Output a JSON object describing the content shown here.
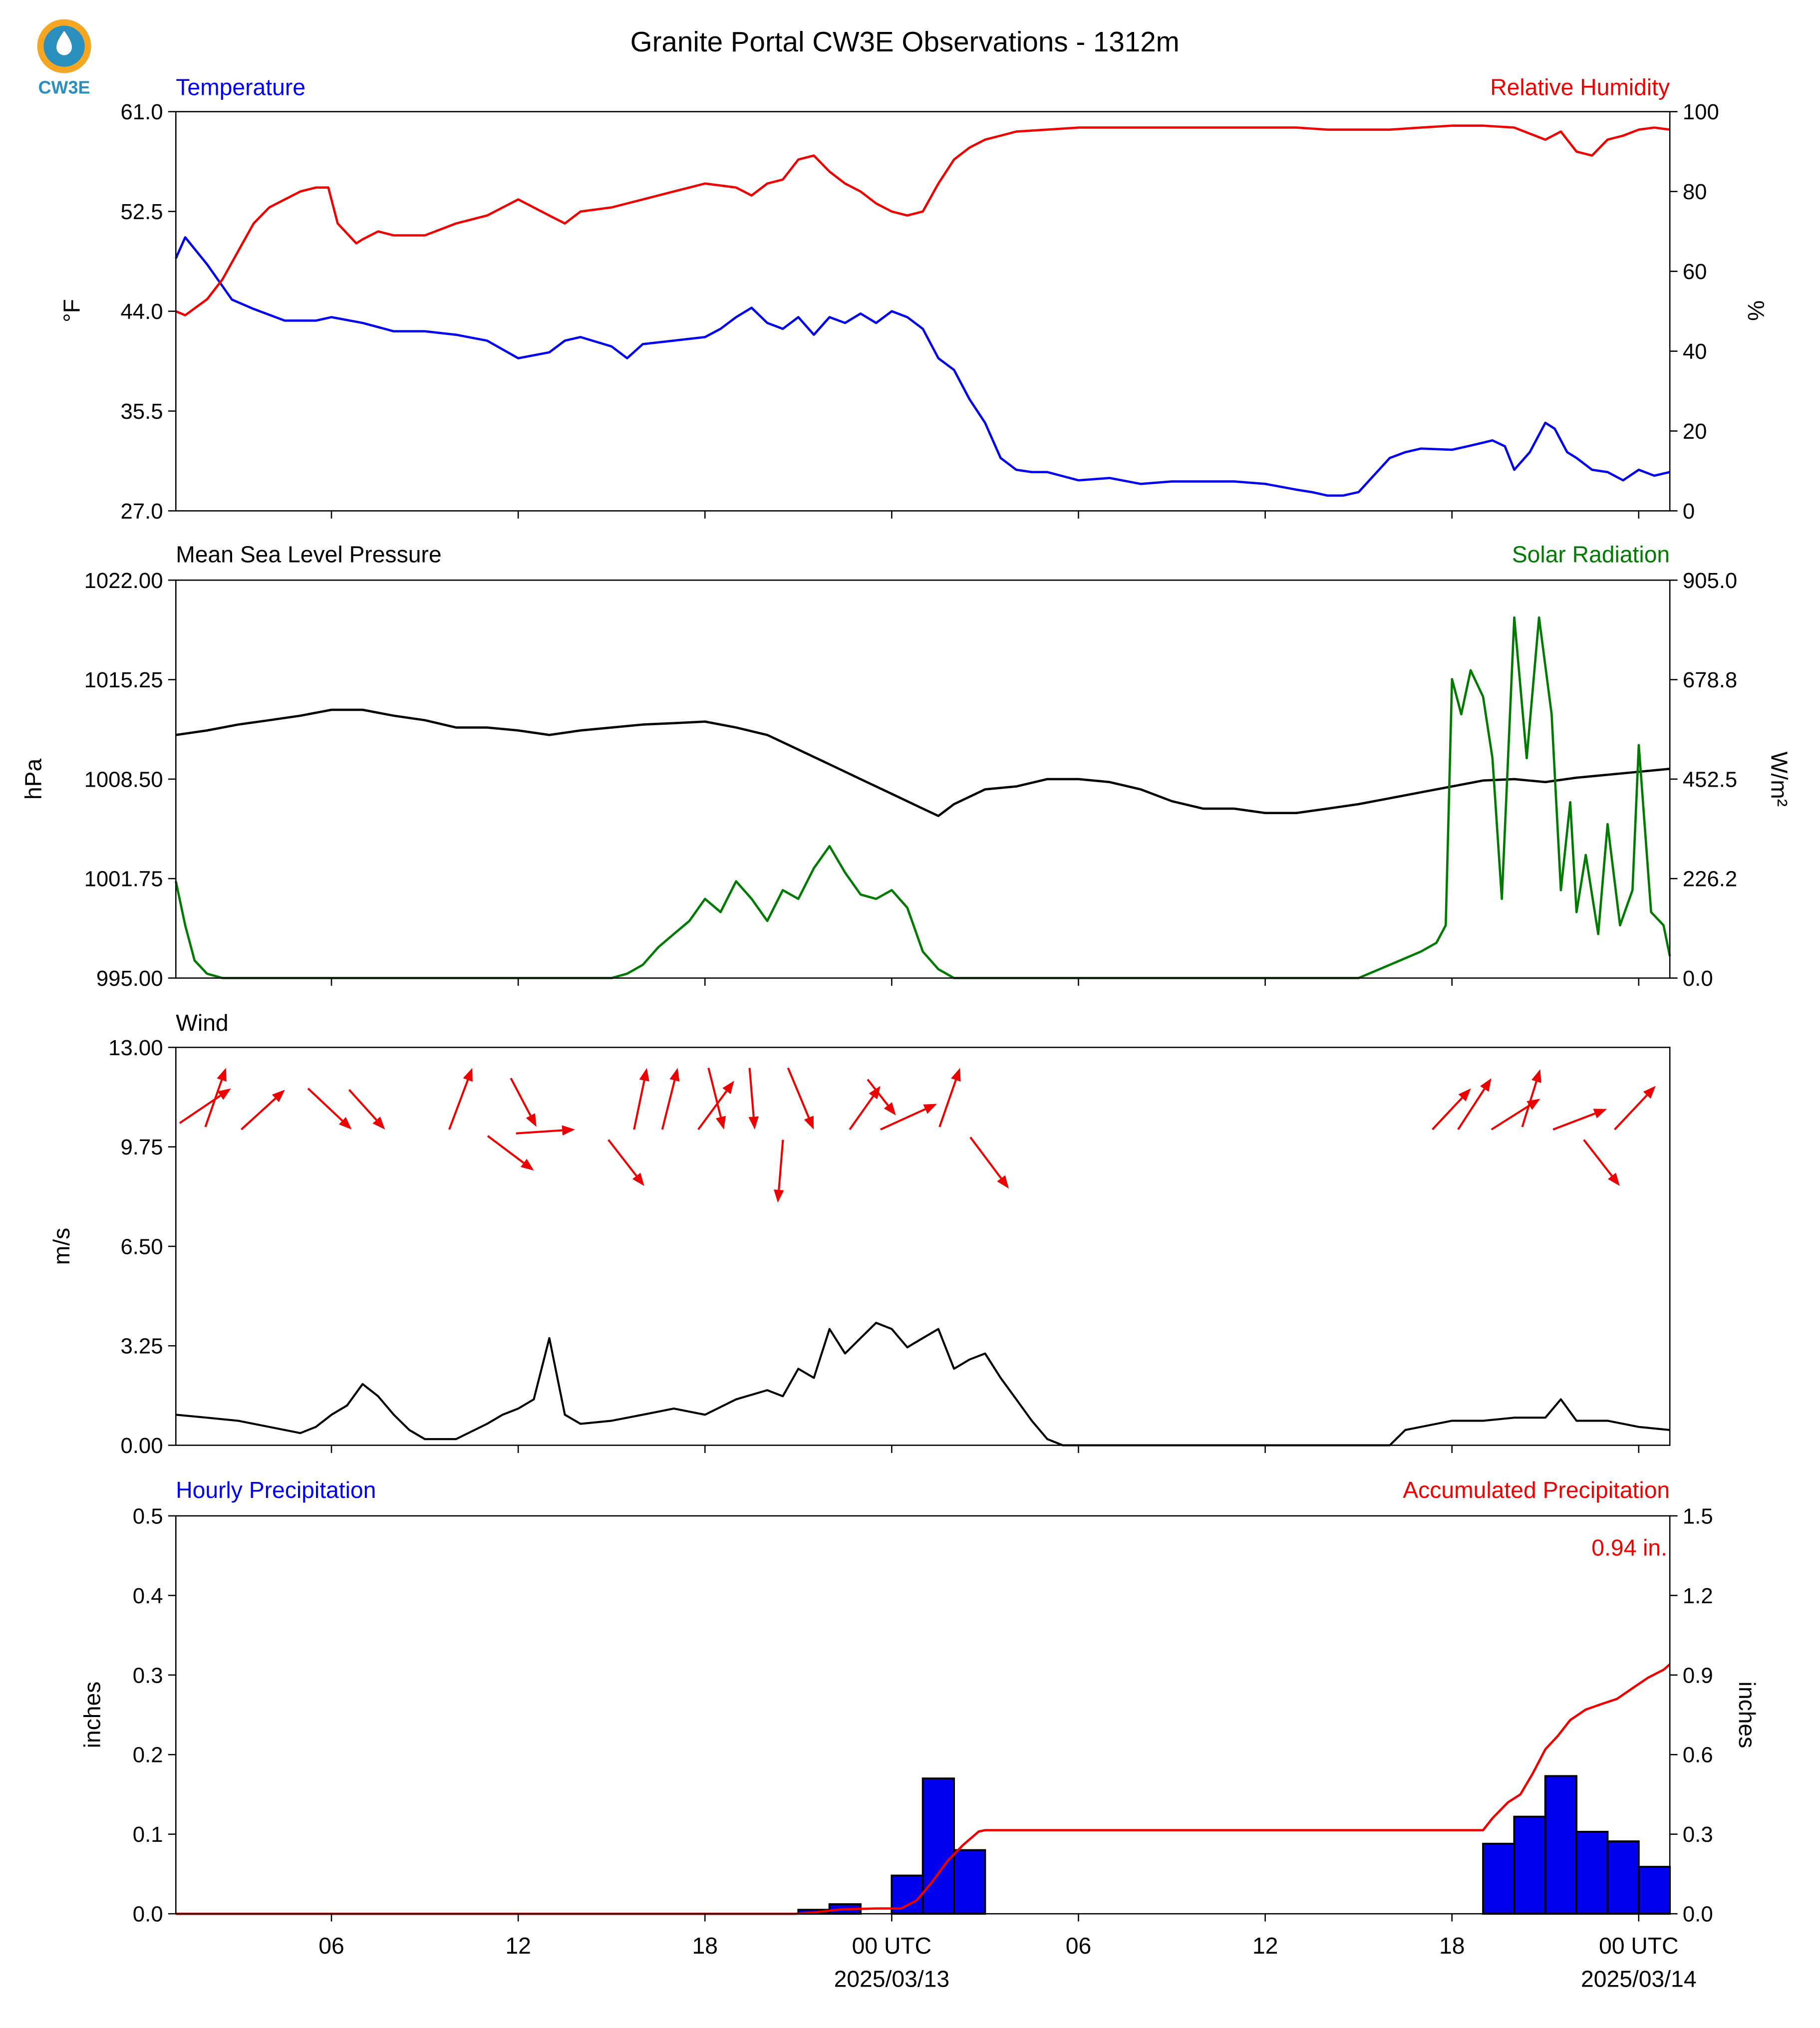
{
  "title": "Granite Portal CW3E Observations - 1312m",
  "logo_text": "CW3E",
  "colors": {
    "blue": "#0000ee",
    "red": "#ee0000",
    "green": "#007a00",
    "black": "#000000",
    "logo": "#2a8fbd",
    "logo_accent": "#f5a623"
  },
  "x_axis": {
    "ticks": [
      {
        "h": 6,
        "label": "06",
        "sub": ""
      },
      {
        "h": 12,
        "label": "12",
        "sub": ""
      },
      {
        "h": 18,
        "label": "18",
        "sub": ""
      },
      {
        "h": 24,
        "label": "00 UTC",
        "sub": "2025/03/13"
      },
      {
        "h": 30,
        "label": "06",
        "sub": ""
      },
      {
        "h": 36,
        "label": "12",
        "sub": ""
      },
      {
        "h": 42,
        "label": "18",
        "sub": ""
      },
      {
        "h": 48,
        "label": "00 UTC",
        "sub": "2025/03/14"
      }
    ],
    "range_hours": [
      1,
      49
    ]
  },
  "panels": {
    "temp": {
      "left_title": "Temperature",
      "right_title": "Relative Humidity",
      "ylabel_left": "°F",
      "ylabel_right": "%",
      "left_ticks": [
        "61.0",
        "52.5",
        "44.0",
        "35.5",
        "27.0"
      ],
      "right_ticks": [
        "100",
        "80",
        "60",
        "40",
        "20",
        "0"
      ]
    },
    "pressure": {
      "left_title": "Mean Sea Level Pressure",
      "right_title": "Solar Radiation",
      "ylabel_left": "hPa",
      "ylabel_right": "W/m²",
      "left_ticks": [
        "1022.00",
        "1015.25",
        "1008.50",
        "1001.75",
        "995.00"
      ],
      "right_ticks": [
        "905.0",
        "678.8",
        "452.5",
        "226.2",
        "0.0"
      ]
    },
    "wind": {
      "left_title": "Wind",
      "ylabel_left": "m/s",
      "left_ticks": [
        "13.00",
        "9.75",
        "6.50",
        "3.25",
        "0.00"
      ]
    },
    "precip": {
      "left_title": "Hourly Precipitation",
      "right_title": "Accumulated Precipitation",
      "ylabel_left": "inches",
      "ylabel_right": "inches",
      "left_ticks": [
        "0.5",
        "0.4",
        "0.3",
        "0.2",
        "0.1",
        "0.0"
      ],
      "right_ticks": [
        "1.5",
        "1.2",
        "0.9",
        "0.6",
        "0.3",
        "0.0"
      ],
      "total_label": "0.94 in."
    }
  },
  "chart_data": [
    {
      "type": "line",
      "title": "Temperature / Relative Humidity",
      "x_unit": "hours from 2025/03/12 00 UTC",
      "ylim": [
        27.0,
        61.0
      ],
      "y2lim": [
        0,
        100
      ],
      "series": [
        {
          "name": "Temperature",
          "axis": "left",
          "color": "#0000ee",
          "x": [
            1,
            1.3,
            2,
            2.8,
            3.5,
            4.5,
            5.5,
            6,
            7,
            8,
            9,
            10,
            11,
            12,
            13,
            13.5,
            14,
            15,
            15.5,
            16,
            17,
            18,
            18.5,
            19,
            19.5,
            20,
            20.5,
            21,
            21.5,
            22,
            22.5,
            23,
            23.5,
            24,
            24.5,
            25,
            25.5,
            26,
            26.5,
            27,
            27.5,
            28,
            28.5,
            29,
            30,
            31,
            32,
            33,
            34,
            35,
            36,
            37,
            37.5,
            38,
            38.5,
            39,
            40,
            40.5,
            41,
            42,
            42.5,
            43,
            43.3,
            43.7,
            44,
            44.5,
            45,
            45.3,
            45.7,
            46,
            46.5,
            47,
            47.5,
            48,
            48.5,
            49
          ],
          "y": [
            48.5,
            50.3,
            48.0,
            45.0,
            44.2,
            43.2,
            43.2,
            43.5,
            43.0,
            42.3,
            42.3,
            42.0,
            41.5,
            40.0,
            40.5,
            41.5,
            41.8,
            41.0,
            40.0,
            41.2,
            41.5,
            41.8,
            42.5,
            43.5,
            44.3,
            43.0,
            42.5,
            43.5,
            42.0,
            43.5,
            43.0,
            43.8,
            43.0,
            44.0,
            43.5,
            42.5,
            40.0,
            39.0,
            36.5,
            34.5,
            31.5,
            30.5,
            30.3,
            30.3,
            29.6,
            29.8,
            29.3,
            29.5,
            29.5,
            29.5,
            29.3,
            28.8,
            28.6,
            28.3,
            28.3,
            28.6,
            31.5,
            32.0,
            32.3,
            32.2,
            32.5,
            32.8,
            33.0,
            32.5,
            30.5,
            32.0,
            34.5,
            34.0,
            32.0,
            31.5,
            30.5,
            30.3,
            29.6,
            30.5,
            30.0,
            30.3
          ]
        },
        {
          "name": "Relative Humidity",
          "axis": "right",
          "color": "#ee0000",
          "x": [
            1,
            1.3,
            2,
            2.5,
            3,
            3.5,
            4,
            4.5,
            5,
            5.5,
            5.9,
            6.2,
            6.8,
            7,
            7.5,
            8,
            9,
            10,
            11,
            12,
            13,
            13.5,
            14,
            15,
            16,
            17,
            18,
            19,
            19.5,
            20,
            20.5,
            21,
            21.5,
            22,
            22.5,
            23,
            23.5,
            24,
            24.5,
            25,
            25.5,
            26,
            26.5,
            27,
            27.5,
            28,
            29,
            30,
            31,
            32,
            33,
            34,
            35,
            36,
            37,
            38,
            39,
            40,
            41,
            42,
            43,
            44,
            45,
            45.5,
            46,
            46.5,
            47,
            47.5,
            48,
            48.5,
            49
          ],
          "y": [
            50,
            49,
            53,
            58,
            65,
            72,
            76,
            78,
            80,
            81,
            81,
            72,
            67,
            68,
            70,
            69,
            69,
            72,
            74,
            78,
            74,
            72,
            75,
            76,
            78,
            80,
            82,
            81,
            79,
            82,
            83,
            88,
            89,
            85,
            82,
            80,
            77,
            75,
            74,
            75,
            82,
            88,
            91,
            93,
            94,
            95,
            95.5,
            96,
            96,
            96,
            96,
            96,
            96,
            96,
            96,
            95.5,
            95.5,
            95.5,
            96,
            96.5,
            96.5,
            96,
            93,
            95,
            90,
            89,
            93,
            94,
            95.5,
            96,
            95.5
          ]
        }
      ]
    },
    {
      "type": "line",
      "title": "Mean Sea Level Pressure / Solar Radiation",
      "x_unit": "hours from 2025/03/12 00 UTC",
      "ylim": [
        995.0,
        1022.0
      ],
      "y2lim": [
        0.0,
        905.0
      ],
      "series": [
        {
          "name": "Mean Sea Level Pressure",
          "axis": "left",
          "color": "#000000",
          "x": [
            1,
            2,
            3,
            4,
            5,
            6,
            7,
            8,
            9,
            10,
            11,
            12,
            13,
            14,
            15,
            16,
            17,
            18,
            19,
            20,
            21,
            22,
            23,
            24,
            25,
            25.5,
            26,
            27,
            28,
            29,
            30,
            31,
            32,
            33,
            34,
            35,
            36,
            37,
            38,
            39,
            40,
            41,
            42,
            43,
            44,
            45,
            46,
            47,
            48,
            49
          ],
          "y": [
            1011.5,
            1011.8,
            1012.2,
            1012.5,
            1012.8,
            1013.2,
            1013.2,
            1012.8,
            1012.5,
            1012.0,
            1012.0,
            1011.8,
            1011.5,
            1011.8,
            1012.0,
            1012.2,
            1012.3,
            1012.4,
            1012.0,
            1011.5,
            1010.5,
            1009.5,
            1008.5,
            1007.5,
            1006.5,
            1006.0,
            1006.8,
            1007.8,
            1008.0,
            1008.5,
            1008.5,
            1008.3,
            1007.8,
            1007.0,
            1006.5,
            1006.5,
            1006.2,
            1006.2,
            1006.5,
            1006.8,
            1007.2,
            1007.6,
            1008.0,
            1008.4,
            1008.5,
            1008.3,
            1008.6,
            1008.8,
            1009.0,
            1009.2
          ]
        },
        {
          "name": "Solar Radiation",
          "axis": "right",
          "color": "#007a00",
          "x": [
            1,
            1.3,
            1.6,
            2,
            2.5,
            3,
            15,
            15.5,
            16,
            16.5,
            17,
            17.5,
            18,
            18.5,
            19,
            19.5,
            20,
            20.5,
            21,
            21.5,
            22,
            22.5,
            23,
            23.5,
            24,
            24.5,
            25,
            25.5,
            26,
            39,
            40,
            41,
            41.5,
            41.8,
            42,
            42.3,
            42.6,
            43,
            43.3,
            43.6,
            44,
            44.4,
            44.8,
            45.2,
            45.5,
            45.8,
            46,
            46.3,
            46.7,
            47,
            47.4,
            47.8,
            48,
            48.4,
            48.8,
            49
          ],
          "y": [
            220,
            120,
            40,
            10,
            0,
            0,
            0,
            10,
            30,
            70,
            100,
            130,
            180,
            150,
            220,
            180,
            130,
            200,
            180,
            250,
            300,
            240,
            190,
            180,
            200,
            160,
            60,
            20,
            0,
            0,
            30,
            60,
            80,
            120,
            680,
            600,
            700,
            640,
            500,
            180,
            820,
            500,
            820,
            600,
            200,
            400,
            150,
            280,
            100,
            350,
            120,
            200,
            530,
            150,
            120,
            50
          ]
        }
      ]
    },
    {
      "type": "line",
      "title": "Wind",
      "x_unit": "hours from 2025/03/12 00 UTC",
      "ylim": [
        0.0,
        13.0
      ],
      "series": [
        {
          "name": "Wind Speed",
          "axis": "left",
          "color": "#000000",
          "x": [
            1,
            2,
            3,
            4,
            5,
            5.5,
            6,
            6.5,
            7,
            7.5,
            8,
            8.5,
            9,
            10,
            11,
            11.5,
            12,
            12.5,
            13,
            13.5,
            14,
            15,
            16,
            17,
            18,
            19,
            20,
            20.5,
            21,
            21.5,
            22,
            22.5,
            23,
            23.5,
            24,
            24.5,
            25,
            25.5,
            26,
            26.5,
            27,
            27.5,
            28,
            28.5,
            29,
            29.5,
            30,
            40,
            40.5,
            41,
            42,
            43,
            44,
            45,
            45.5,
            46,
            47,
            48,
            49
          ],
          "y": [
            1.0,
            0.9,
            0.8,
            0.6,
            0.4,
            0.6,
            1.0,
            1.3,
            2.0,
            1.6,
            1.0,
            0.5,
            0.2,
            0.2,
            0.7,
            1.0,
            1.2,
            1.5,
            3.5,
            1.0,
            0.7,
            0.8,
            1.0,
            1.2,
            1.0,
            1.5,
            1.8,
            1.6,
            2.5,
            2.2,
            3.8,
            3.0,
            3.5,
            4.0,
            3.8,
            3.2,
            3.5,
            3.8,
            2.5,
            2.8,
            3.0,
            2.2,
            1.5,
            0.8,
            0.2,
            0.0,
            0.0,
            0.0,
            0.5,
            0.6,
            0.8,
            0.8,
            0.9,
            0.9,
            1.5,
            0.8,
            0.8,
            0.6,
            0.5
          ]
        },
        {
          "name": "Wind Direction",
          "type": "arrows",
          "color": "#ee0000",
          "arrows": [
            [
              140,
              875,
              180,
              848
            ],
            [
              160,
              878,
              176,
              832
            ],
            [
              188,
              880,
              222,
              849
            ],
            [
              240,
              848,
              274,
              880
            ],
            [
              272,
              849,
              300,
              880
            ],
            [
              350,
              880,
              368,
              832
            ],
            [
              380,
              885,
              416,
              912
            ],
            [
              398,
              840,
              418,
              878
            ],
            [
              402,
              883,
              448,
              880
            ],
            [
              474,
              888,
              502,
              924
            ],
            [
              494,
              880,
              504,
              832
            ],
            [
              516,
              880,
              528,
              832
            ],
            [
              544,
              880,
              572,
              842
            ],
            [
              552,
              832,
              564,
              880
            ],
            [
              584,
              832,
              588,
              880
            ],
            [
              614,
              832,
              634,
              880
            ],
            [
              610,
              888,
              606,
              937
            ],
            [
              662,
              880,
              686,
              846
            ],
            [
              676,
              841,
              698,
              869
            ],
            [
              686,
              880,
              730,
              860
            ],
            [
              732,
              878,
              748,
              832
            ],
            [
              756,
              886,
              786,
              926
            ],
            [
              1116,
              880,
              1146,
              848
            ],
            [
              1136,
              880,
              1162,
              840
            ],
            [
              1162,
              880,
              1200,
              856
            ],
            [
              1186,
              878,
              1200,
              833
            ],
            [
              1210,
              880,
              1252,
              864
            ],
            [
              1234,
              888,
              1262,
              924
            ],
            [
              1258,
              880,
              1290,
              846
            ]
          ]
        }
      ]
    },
    {
      "type": "bar",
      "title": "Hourly Precipitation / Accumulated Precipitation",
      "x_unit": "hours from 2025/03/12 00 UTC",
      "ylim": [
        0.0,
        0.5
      ],
      "y2lim": [
        0.0,
        1.5
      ],
      "series": [
        {
          "name": "Hourly Precipitation",
          "axis": "left",
          "color": "#0000ee",
          "x": [
            21.5,
            22.5,
            24.5,
            25.5,
            26.5,
            43.5,
            44.5,
            45.5,
            46.5,
            47.5,
            48.5
          ],
          "y": [
            0.005,
            0.012,
            0.048,
            0.17,
            0.08,
            0.088,
            0.122,
            0.173,
            0.103,
            0.091,
            0.059
          ]
        },
        {
          "name": "Accumulated Precipitation",
          "axis": "right",
          "color": "#ee0000",
          "x": [
            1,
            20.9,
            21.5,
            22.4,
            23.5,
            24.3,
            24.8,
            25.3,
            25.8,
            26.3,
            26.8,
            27,
            43,
            43.3,
            43.8,
            44.2,
            44.6,
            45,
            45.4,
            45.8,
            46.3,
            46.8,
            47.3,
            47.8,
            48.3,
            48.8,
            49
          ],
          "y": [
            0,
            0,
            0.005,
            0.017,
            0.02,
            0.02,
            0.05,
            0.12,
            0.2,
            0.26,
            0.31,
            0.315,
            0.315,
            0.36,
            0.42,
            0.45,
            0.53,
            0.62,
            0.67,
            0.73,
            0.77,
            0.79,
            0.81,
            0.85,
            0.89,
            0.92,
            0.94
          ]
        }
      ]
    }
  ]
}
